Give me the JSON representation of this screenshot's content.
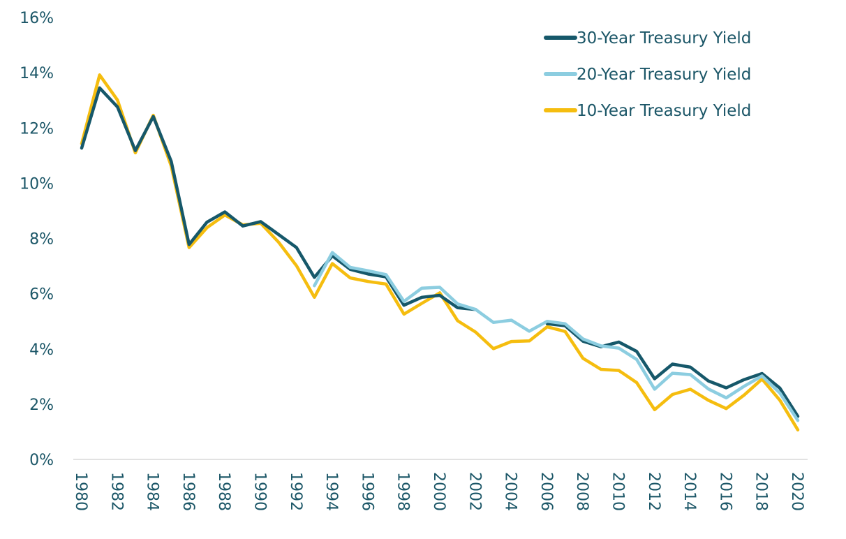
{
  "colors": {
    "text": "#1b5667",
    "axis": "#d9d9d9"
  },
  "chart_data": {
    "type": "line",
    "title": "",
    "xlabel": "",
    "ylabel": "",
    "ylim": [
      0,
      16
    ],
    "y_ticks": [
      "0%",
      "2%",
      "4%",
      "6%",
      "8%",
      "10%",
      "12%",
      "14%",
      "16%"
    ],
    "x_tick_labels": [
      "1980",
      "1982",
      "1984",
      "1986",
      "1988",
      "1990",
      "1992",
      "1994",
      "1996",
      "1998",
      "2000",
      "2002",
      "2004",
      "2006",
      "2008",
      "2010",
      "2012",
      "2014",
      "2016",
      "2018",
      "2020"
    ],
    "grid": false,
    "legend": "top-right",
    "x": [
      1980,
      1981,
      1982,
      1983,
      1984,
      1985,
      1986,
      1987,
      1988,
      1989,
      1990,
      1991,
      1992,
      1993,
      1994,
      1995,
      1996,
      1997,
      1998,
      1999,
      2000,
      2001,
      2002,
      2003,
      2004,
      2005,
      2006,
      2007,
      2008,
      2009,
      2010,
      2011,
      2012,
      2013,
      2014,
      2015,
      2016,
      2017,
      2018,
      2019,
      2020
    ],
    "series": [
      {
        "name": "30-Year Treasury Yield",
        "color": "#16586a",
        "values": [
          11.27,
          13.45,
          12.76,
          11.18,
          12.41,
          10.79,
          7.78,
          8.59,
          8.96,
          8.45,
          8.61,
          8.14,
          7.67,
          6.59,
          7.37,
          6.88,
          6.71,
          6.61,
          5.58,
          5.87,
          5.94,
          5.49,
          5.43,
          null,
          null,
          null,
          4.91,
          4.84,
          4.28,
          4.08,
          4.25,
          3.91,
          2.92,
          3.45,
          3.34,
          2.84,
          2.59,
          2.89,
          3.11,
          2.58,
          1.56
        ],
        "draw_order": 1
      },
      {
        "name": "20-Year Treasury Yield",
        "color": "#8ccde0",
        "values": [
          null,
          null,
          null,
          null,
          null,
          null,
          null,
          null,
          null,
          null,
          null,
          null,
          null,
          6.29,
          7.49,
          6.95,
          6.83,
          6.69,
          5.72,
          6.2,
          6.23,
          5.63,
          5.43,
          4.96,
          5.04,
          4.64,
          5.0,
          4.91,
          4.36,
          4.11,
          4.03,
          3.62,
          2.54,
          3.12,
          3.07,
          2.55,
          2.23,
          2.65,
          3.02,
          2.4,
          1.41
        ],
        "draw_order": 2
      },
      {
        "name": "10-Year Treasury Yield",
        "color": "#f5bd0f",
        "values": [
          11.43,
          13.92,
          13.01,
          11.1,
          12.46,
          10.62,
          7.67,
          8.39,
          8.85,
          8.49,
          8.55,
          7.86,
          7.01,
          5.87,
          7.09,
          6.57,
          6.44,
          6.35,
          5.26,
          5.65,
          6.03,
          5.02,
          4.61,
          4.01,
          4.27,
          4.29,
          4.8,
          4.63,
          3.66,
          3.26,
          3.22,
          2.78,
          1.8,
          2.35,
          2.54,
          2.14,
          1.84,
          2.33,
          2.91,
          2.14,
          1.07
        ],
        "draw_order": 0
      }
    ]
  }
}
